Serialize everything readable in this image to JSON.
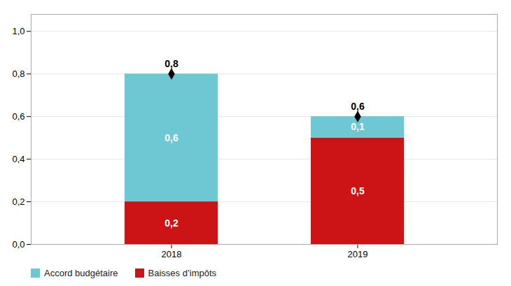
{
  "chart_data": {
    "type": "bar",
    "stacked": true,
    "categories": [
      "2018",
      "2019"
    ],
    "series": [
      {
        "name": "Baisses d’impôts",
        "color": "#CC1417",
        "values": [
          0.2,
          0.5
        ],
        "value_labels": [
          "0,2",
          "0,5"
        ]
      },
      {
        "name": "Accord budgétaire",
        "color": "#6DC8D4",
        "values": [
          0.6,
          0.1
        ],
        "value_labels": [
          "0,6",
          "0,1"
        ]
      }
    ],
    "totals": [
      0.8,
      0.6
    ],
    "total_labels": [
      "0,8",
      "0,6"
    ],
    "marker": "diamond",
    "data_labels": true,
    "ylim": [
      0,
      1.08
    ],
    "yticks": [
      {
        "value": 0.0,
        "label": "0,0"
      },
      {
        "value": 0.2,
        "label": "0,2"
      },
      {
        "value": 0.4,
        "label": "0,4"
      },
      {
        "value": 0.6,
        "label": "0,6"
      },
      {
        "value": 0.8,
        "label": "0,8"
      },
      {
        "value": 1.0,
        "label": "1,0"
      }
    ],
    "grid": true,
    "legend": "bottom"
  }
}
